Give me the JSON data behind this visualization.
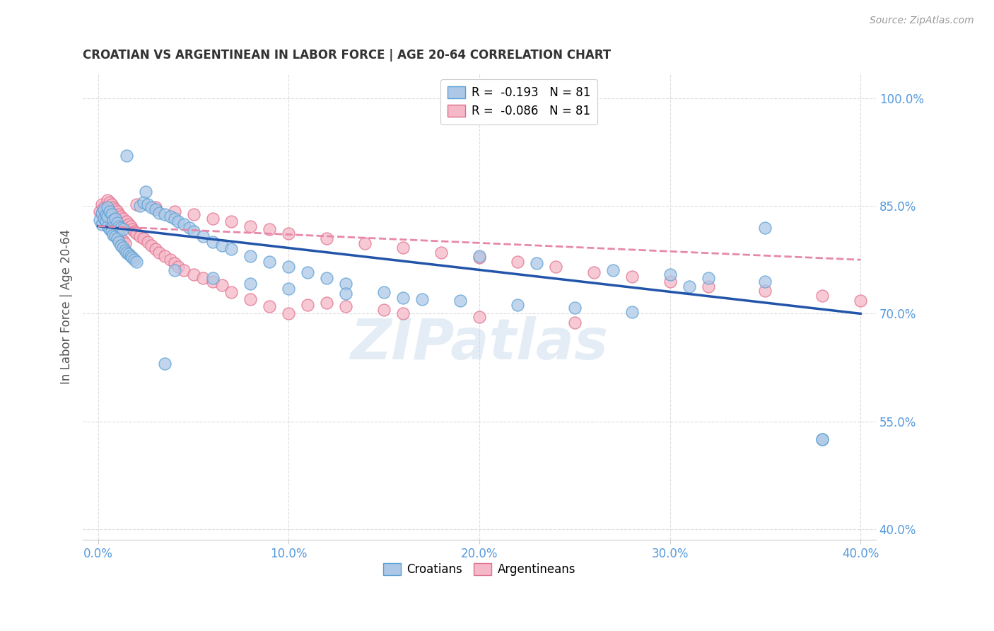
{
  "title": "CROATIAN VS ARGENTINEAN IN LABOR FORCE | AGE 20-64 CORRELATION CHART",
  "source": "Source: ZipAtlas.com",
  "xlabel_ticks": [
    "0.0%",
    "",
    "",
    "",
    "",
    "10.0%",
    "",
    "",
    "",
    "",
    "20.0%",
    "",
    "",
    "",
    "",
    "30.0%",
    "",
    "",
    "",
    "",
    "40.0%"
  ],
  "xlabel_vals": [
    0.0,
    0.02,
    0.04,
    0.06,
    0.08,
    0.1,
    0.12,
    0.14,
    0.16,
    0.18,
    0.2,
    0.22,
    0.24,
    0.26,
    0.28,
    0.3,
    0.32,
    0.34,
    0.36,
    0.38,
    0.4
  ],
  "xlabel_major": [
    0.0,
    0.1,
    0.2,
    0.3,
    0.4
  ],
  "xlabel_major_labels": [
    "0.0%",
    "10.0%",
    "20.0%",
    "30.0%",
    "40.0%"
  ],
  "ylabel_vals": [
    0.4,
    0.55,
    0.7,
    0.85,
    1.0
  ],
  "ylabel_ticks": [
    "40.0%",
    "55.0%",
    "70.0%",
    "85.0%",
    "100.0%"
  ],
  "ylabel_label": "In Labor Force | Age 20-64",
  "croatians_R": "-0.193",
  "croatians_N": "81",
  "argentineans_R": "-0.086",
  "argentineans_N": "81",
  "croatians_color": "#adc8e6",
  "croatians_edge": "#5a9fd4",
  "argentineans_color": "#f5b8c8",
  "argentineans_edge": "#e0708c",
  "croatians_line_color": "#2255aa",
  "argentineans_line_color": "#e888a8",
  "watermark": "ZIPatlas",
  "background_color": "#ffffff",
  "grid_color": "#dddddd",
  "axis_color": "#5599dd",
  "title_color": "#333333",
  "source_color": "#999999",
  "ylabel_color": "#5599dd",
  "xlim": [
    -0.008,
    0.408
  ],
  "ylim": [
    0.385,
    1.035
  ],
  "croatians_x": [
    0.001,
    0.002,
    0.002,
    0.003,
    0.003,
    0.004,
    0.004,
    0.005,
    0.005,
    0.005,
    0.006,
    0.006,
    0.007,
    0.007,
    0.008,
    0.008,
    0.009,
    0.009,
    0.01,
    0.01,
    0.011,
    0.011,
    0.012,
    0.012,
    0.013,
    0.013,
    0.014,
    0.015,
    0.016,
    0.017,
    0.018,
    0.019,
    0.02,
    0.022,
    0.024,
    0.026,
    0.028,
    0.03,
    0.032,
    0.035,
    0.038,
    0.04,
    0.042,
    0.045,
    0.048,
    0.05,
    0.055,
    0.06,
    0.065,
    0.07,
    0.08,
    0.09,
    0.1,
    0.11,
    0.12,
    0.13,
    0.15,
    0.17,
    0.2,
    0.23,
    0.27,
    0.3,
    0.32,
    0.35,
    0.04,
    0.06,
    0.08,
    0.1,
    0.13,
    0.16,
    0.19,
    0.22,
    0.25,
    0.28,
    0.31,
    0.35,
    0.38,
    0.015,
    0.025,
    0.035,
    0.38
  ],
  "croatians_y": [
    0.83,
    0.825,
    0.84,
    0.832,
    0.845,
    0.828,
    0.838,
    0.822,
    0.835,
    0.848,
    0.818,
    0.842,
    0.815,
    0.838,
    0.81,
    0.83,
    0.808,
    0.832,
    0.805,
    0.826,
    0.8,
    0.822,
    0.795,
    0.82,
    0.792,
    0.818,
    0.788,
    0.785,
    0.783,
    0.78,
    0.778,
    0.775,
    0.772,
    0.85,
    0.855,
    0.852,
    0.848,
    0.845,
    0.84,
    0.838,
    0.835,
    0.832,
    0.828,
    0.825,
    0.82,
    0.815,
    0.808,
    0.8,
    0.795,
    0.79,
    0.78,
    0.772,
    0.765,
    0.758,
    0.75,
    0.742,
    0.73,
    0.72,
    0.78,
    0.77,
    0.76,
    0.755,
    0.75,
    0.745,
    0.76,
    0.75,
    0.742,
    0.735,
    0.728,
    0.722,
    0.718,
    0.712,
    0.708,
    0.702,
    0.738,
    0.82,
    0.525,
    0.92,
    0.87,
    0.63,
    0.525
  ],
  "argentineans_x": [
    0.001,
    0.002,
    0.002,
    0.003,
    0.003,
    0.004,
    0.004,
    0.005,
    0.005,
    0.006,
    0.006,
    0.007,
    0.007,
    0.008,
    0.008,
    0.009,
    0.009,
    0.01,
    0.01,
    0.011,
    0.011,
    0.012,
    0.012,
    0.013,
    0.013,
    0.014,
    0.015,
    0.016,
    0.017,
    0.018,
    0.019,
    0.02,
    0.022,
    0.024,
    0.026,
    0.028,
    0.03,
    0.032,
    0.035,
    0.038,
    0.04,
    0.042,
    0.045,
    0.05,
    0.055,
    0.06,
    0.065,
    0.07,
    0.08,
    0.09,
    0.1,
    0.11,
    0.12,
    0.13,
    0.15,
    0.16,
    0.2,
    0.25,
    0.02,
    0.03,
    0.04,
    0.05,
    0.06,
    0.07,
    0.08,
    0.09,
    0.1,
    0.12,
    0.14,
    0.16,
    0.18,
    0.2,
    0.22,
    0.24,
    0.26,
    0.28,
    0.3,
    0.32,
    0.35,
    0.38,
    0.4
  ],
  "argentineans_y": [
    0.842,
    0.838,
    0.852,
    0.835,
    0.848,
    0.832,
    0.845,
    0.828,
    0.858,
    0.825,
    0.855,
    0.822,
    0.852,
    0.818,
    0.848,
    0.815,
    0.845,
    0.812,
    0.842,
    0.808,
    0.838,
    0.805,
    0.835,
    0.802,
    0.832,
    0.798,
    0.828,
    0.825,
    0.822,
    0.818,
    0.815,
    0.812,
    0.808,
    0.805,
    0.8,
    0.795,
    0.79,
    0.785,
    0.78,
    0.775,
    0.77,
    0.765,
    0.76,
    0.755,
    0.75,
    0.745,
    0.74,
    0.73,
    0.72,
    0.71,
    0.7,
    0.712,
    0.715,
    0.71,
    0.705,
    0.7,
    0.695,
    0.688,
    0.852,
    0.848,
    0.842,
    0.838,
    0.832,
    0.828,
    0.822,
    0.818,
    0.812,
    0.805,
    0.798,
    0.792,
    0.785,
    0.778,
    0.772,
    0.765,
    0.758,
    0.752,
    0.745,
    0.738,
    0.732,
    0.725,
    0.718
  ],
  "c_line_x0": 0.0,
  "c_line_x1": 0.4,
  "c_line_y0": 0.822,
  "c_line_y1": 0.7,
  "a_line_x0": 0.0,
  "a_line_x1": 0.4,
  "a_line_y0": 0.822,
  "a_line_y1": 0.775
}
